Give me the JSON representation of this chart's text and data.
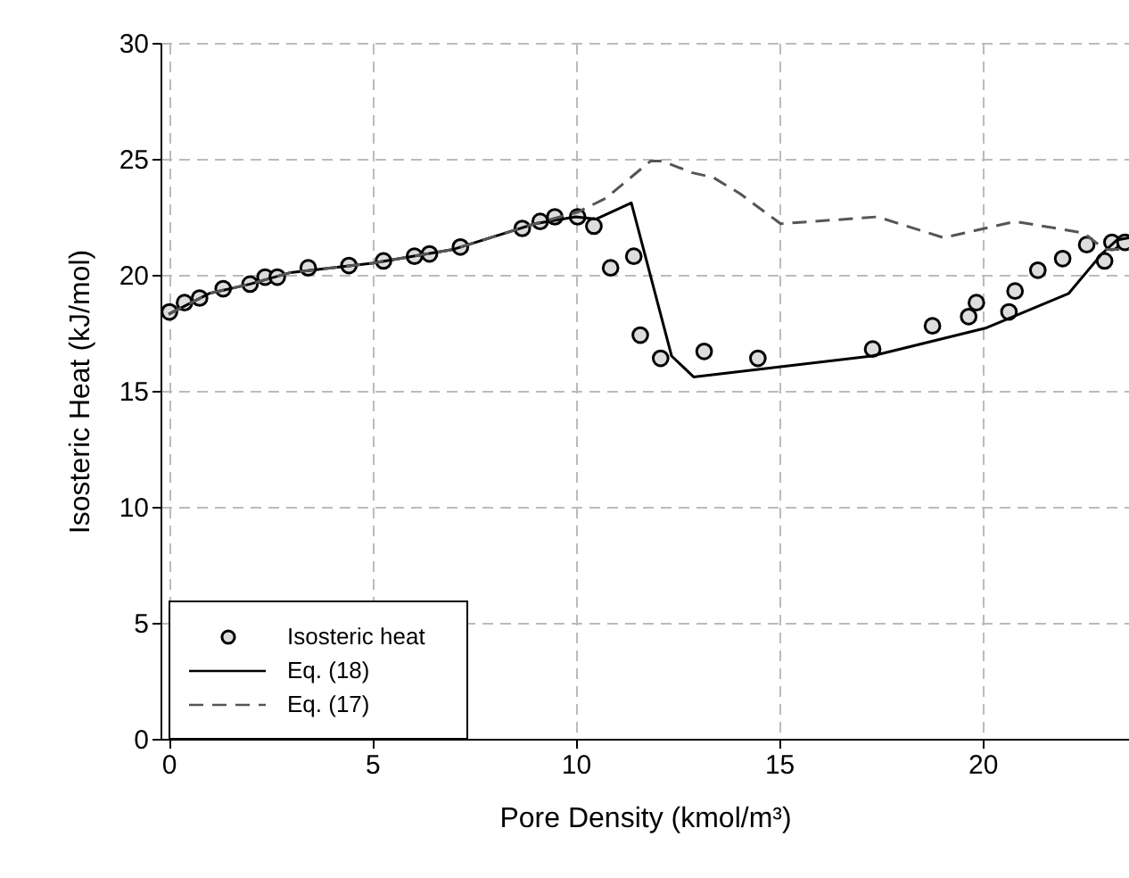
{
  "chart_data": {
    "type": "line",
    "xlabel": "Pore Density (kmol/m³)",
    "ylabel": "Isosteric Heat (kJ/mol)",
    "xlim": [
      -0.2,
      23.6
    ],
    "ylim": [
      0,
      30
    ],
    "xticks": [
      0,
      5,
      10,
      15,
      20
    ],
    "yticks": [
      0,
      5,
      10,
      15,
      20,
      25,
      30
    ],
    "grid": true,
    "legend": "bottom left",
    "series": [
      {
        "name": "Isosteric heat",
        "type": "scatter",
        "marker": "circle",
        "color": "#000000",
        "x": [
          0.02,
          0.39,
          0.76,
          1.34,
          2.0,
          2.37,
          2.67,
          3.43,
          4.43,
          5.28,
          6.04,
          6.41,
          7.17,
          8.69,
          9.13,
          9.49,
          10.05,
          10.45,
          10.86,
          11.43,
          11.59,
          12.09,
          13.16,
          14.48,
          17.3,
          18.77,
          19.66,
          19.85,
          20.65,
          20.8,
          21.36,
          21.97,
          22.56,
          23.0,
          23.18,
          23.5
        ],
        "values": [
          18.4,
          18.8,
          19.0,
          19.4,
          19.6,
          19.9,
          19.9,
          20.3,
          20.4,
          20.6,
          20.8,
          20.9,
          21.2,
          22.0,
          22.3,
          22.5,
          22.5,
          22.1,
          20.3,
          20.8,
          17.4,
          16.4,
          16.7,
          16.4,
          16.8,
          17.8,
          18.2,
          18.8,
          18.4,
          19.3,
          20.2,
          20.7,
          21.3,
          20.6,
          21.4,
          21.4
        ]
      },
      {
        "name": "Eq. (18)",
        "line_style": "solid",
        "color": "#000000",
        "x": [
          0,
          1,
          2,
          3,
          5,
          7,
          9,
          10,
          10.5,
          11.37,
          12.36,
          12.9,
          17.28,
          20.07,
          22.12,
          22.93,
          23.3,
          23.6
        ],
        "values": [
          18.3,
          19.2,
          19.6,
          20.1,
          20.5,
          21.1,
          22.2,
          22.5,
          22.4,
          23.1,
          16.5,
          15.6,
          16.5,
          17.7,
          19.2,
          20.9,
          21.5,
          21.6
        ]
      },
      {
        "name": "Eq. (17)",
        "line_style": "dashed",
        "color": "#555555",
        "x": [
          0,
          1,
          2,
          3,
          5,
          7,
          9,
          10.05,
          10.74,
          11.84,
          12.14,
          12.87,
          13.38,
          14.04,
          15.04,
          17.42,
          19.04,
          20.8,
          21.83,
          22.49,
          23.0,
          23.6
        ],
        "values": [
          18.3,
          19.2,
          19.6,
          20.1,
          20.5,
          21.1,
          22.2,
          22.7,
          23.3,
          24.9,
          24.9,
          24.4,
          24.2,
          23.5,
          22.2,
          22.5,
          21.6,
          22.3,
          22.0,
          21.8,
          21.1,
          21.1
        ]
      }
    ]
  }
}
